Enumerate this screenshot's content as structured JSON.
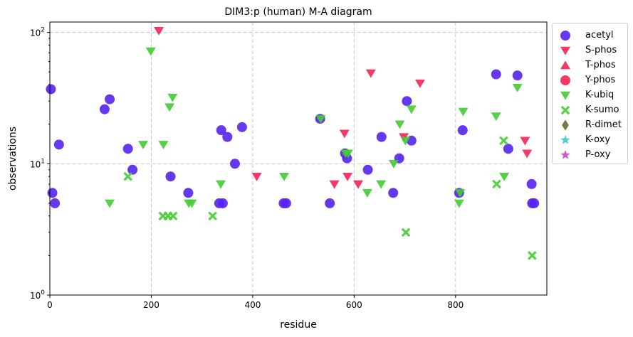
{
  "chart_data": {
    "type": "scatter",
    "title": "DIM3:p (human) M-A diagram",
    "xlabel": "residue",
    "ylabel": "observations",
    "xlim": [
      0,
      980
    ],
    "ylim": [
      1,
      120
    ],
    "yscale": "log",
    "grid": true,
    "legend_position": "outside-right",
    "x_ticks": [
      0,
      200,
      400,
      600,
      800
    ],
    "y_ticks": [
      {
        "value": 1,
        "label": "10",
        "exp": "0"
      },
      {
        "value": 10,
        "label": "10",
        "exp": "1"
      },
      {
        "value": 100,
        "label": "10",
        "exp": "2"
      }
    ],
    "series": [
      {
        "name": "acetyl",
        "marker": "circle",
        "color": "#5522ee",
        "points": [
          [
            2,
            37
          ],
          [
            5,
            6
          ],
          [
            10,
            5
          ],
          [
            18,
            14
          ],
          [
            108,
            26
          ],
          [
            118,
            31
          ],
          [
            154,
            13
          ],
          [
            163,
            9
          ],
          [
            238,
            8
          ],
          [
            273,
            6
          ],
          [
            334,
            5
          ],
          [
            338,
            18
          ],
          [
            341,
            5
          ],
          [
            350,
            16
          ],
          [
            365,
            10
          ],
          [
            379,
            19
          ],
          [
            461,
            5
          ],
          [
            466,
            5
          ],
          [
            533,
            22
          ],
          [
            552,
            5
          ],
          [
            582,
            12
          ],
          [
            586,
            11
          ],
          [
            627,
            9
          ],
          [
            654,
            16
          ],
          [
            677,
            6
          ],
          [
            689,
            11
          ],
          [
            704,
            30
          ],
          [
            713,
            15
          ],
          [
            807,
            6
          ],
          [
            814,
            18
          ],
          [
            880,
            48
          ],
          [
            904,
            13
          ],
          [
            922,
            47
          ],
          [
            950,
            7
          ],
          [
            951,
            5
          ],
          [
            955,
            5
          ]
        ]
      },
      {
        "name": "S-phos",
        "marker": "triangle-down",
        "color": "#f52255",
        "points": [
          [
            215,
            103
          ],
          [
            408,
            8
          ],
          [
            561,
            7
          ],
          [
            581,
            17
          ],
          [
            587,
            8
          ],
          [
            608,
            7
          ],
          [
            633,
            49
          ],
          [
            698,
            16
          ],
          [
            730,
            41
          ],
          [
            937,
            15
          ],
          [
            941,
            12
          ]
        ]
      },
      {
        "name": "T-phos",
        "marker": "triangle-up",
        "color": "#f52255",
        "points": []
      },
      {
        "name": "Y-phos",
        "marker": "circle",
        "color": "#f52255",
        "points": []
      },
      {
        "name": "K-ubiq",
        "marker": "triangle-down",
        "color": "#44cc33",
        "points": [
          [
            118,
            5
          ],
          [
            199,
            72
          ],
          [
            184,
            14
          ],
          [
            224,
            14
          ],
          [
            236,
            27
          ],
          [
            242,
            32
          ],
          [
            274,
            5
          ],
          [
            280,
            5
          ],
          [
            337,
            7
          ],
          [
            462,
            8
          ],
          [
            534,
            22
          ],
          [
            583,
            12
          ],
          [
            588,
            12
          ],
          [
            626,
            6
          ],
          [
            653,
            7
          ],
          [
            678,
            10
          ],
          [
            690,
            20
          ],
          [
            701,
            15
          ],
          [
            713,
            26
          ],
          [
            807,
            5
          ],
          [
            809,
            6
          ],
          [
            815,
            25
          ],
          [
            880,
            23
          ],
          [
            896,
            8
          ],
          [
            922,
            38
          ]
        ]
      },
      {
        "name": "K-sumo",
        "marker": "x-thick",
        "color": "#44cc33",
        "points": [
          [
            154,
            8
          ],
          [
            223,
            4
          ],
          [
            233,
            4
          ],
          [
            243,
            4
          ],
          [
            321,
            4
          ],
          [
            702,
            3
          ],
          [
            881,
            7
          ],
          [
            895,
            15
          ],
          [
            951,
            2
          ]
        ]
      },
      {
        "name": "R-dimet",
        "marker": "diamond",
        "color": "#6b6b3b",
        "points": []
      },
      {
        "name": "K-oxy",
        "marker": "star",
        "color": "#33cccc",
        "points": []
      },
      {
        "name": "P-oxy",
        "marker": "star",
        "color": "#cc44cc",
        "points": []
      }
    ]
  }
}
